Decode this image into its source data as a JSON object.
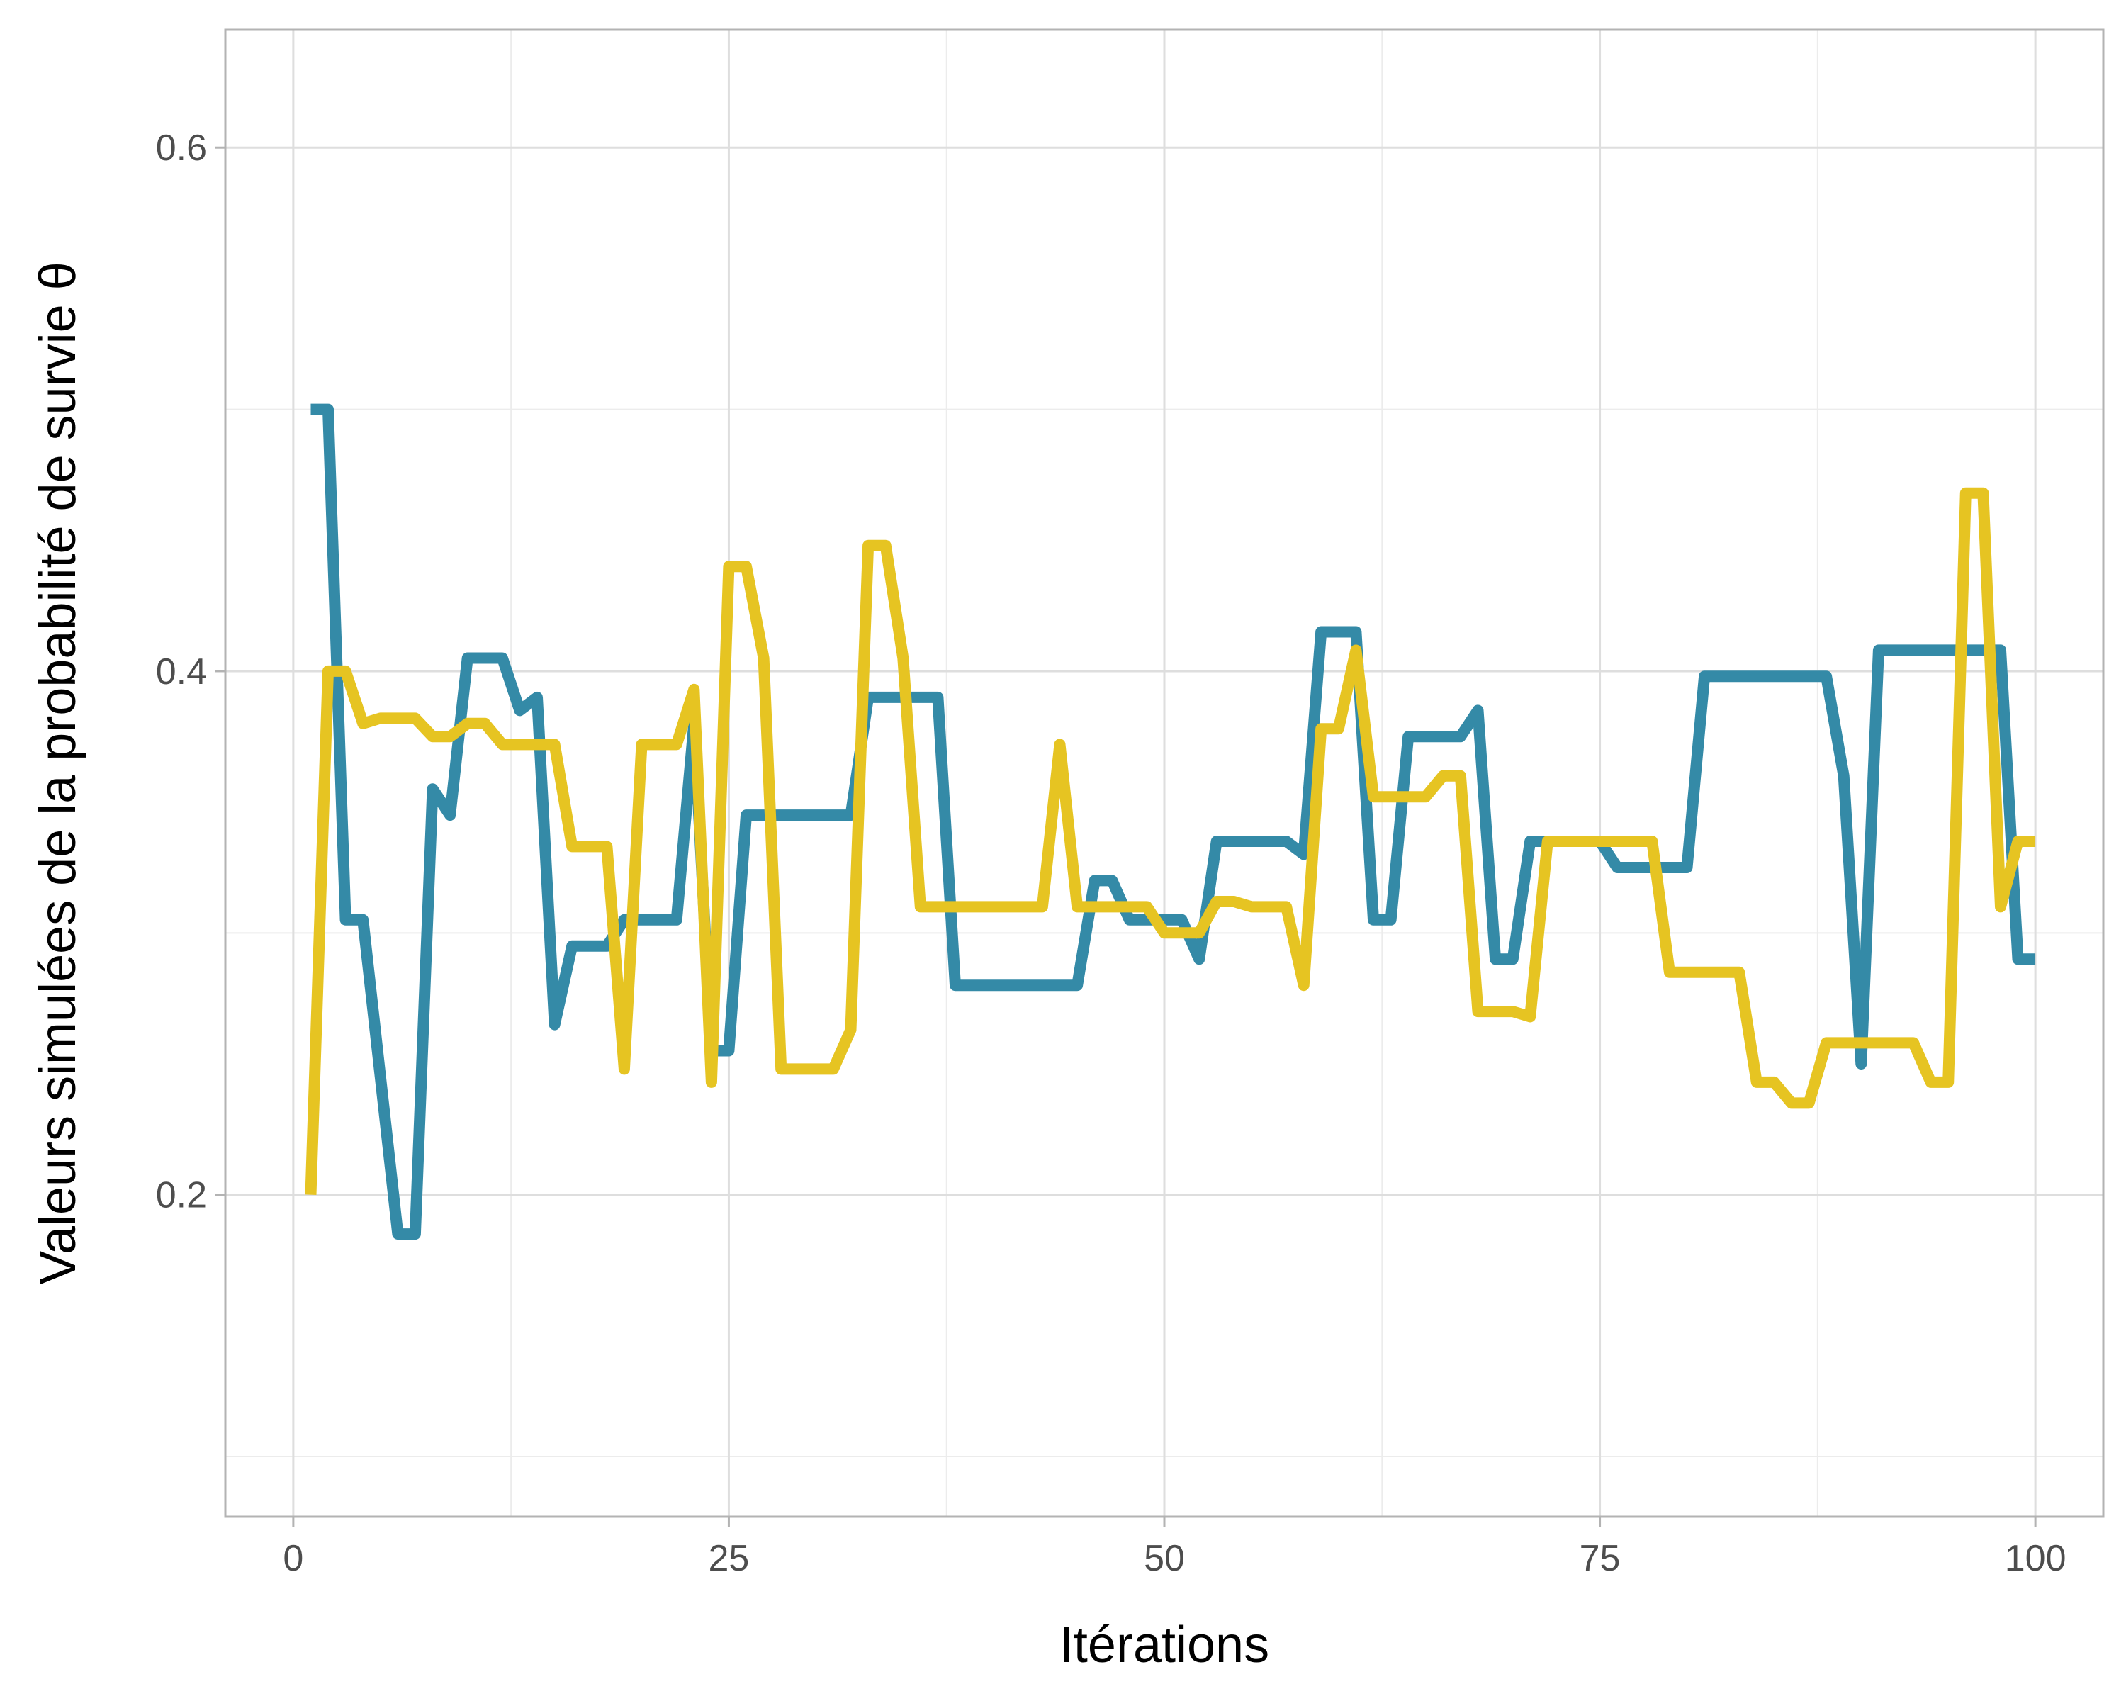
{
  "chart_data": {
    "type": "line",
    "xlabel": "Itérations",
    "ylabel": "Valeurs simulées de la probabilité de survie θ",
    "xlim": [
      -3.9,
      103.9
    ],
    "ylim": [
      0.077,
      0.645
    ],
    "x_ticks": [
      0,
      25,
      50,
      75,
      100
    ],
    "x_tick_labels": [
      "0",
      "25",
      "50",
      "75",
      "100"
    ],
    "y_ticks": [
      0.2,
      0.4,
      0.6
    ],
    "y_tick_labels": [
      "0.2",
      "0.4",
      "0.6"
    ],
    "grid": true,
    "legend": "none",
    "colors": {
      "background": "#ffffff",
      "panel_border": "#b3b3b3",
      "grid_major": "#dedede",
      "grid_minor": "#ececec",
      "series_1": "#348aa7",
      "series_2": "#e6c422"
    },
    "series": [
      {
        "color": "#348aa7",
        "x": [
          1,
          2,
          3,
          4,
          5,
          6,
          7,
          8,
          9,
          10,
          11,
          12,
          13,
          14,
          15,
          16,
          17,
          18,
          19,
          20,
          21,
          22,
          23,
          24,
          25,
          26,
          27,
          28,
          29,
          30,
          31,
          32,
          33,
          34,
          35,
          36,
          37,
          38,
          39,
          40,
          41,
          42,
          43,
          44,
          45,
          46,
          47,
          48,
          49,
          50,
          51,
          52,
          53,
          54,
          55,
          56,
          57,
          58,
          59,
          60,
          61,
          62,
          63,
          64,
          65,
          66,
          67,
          68,
          69,
          70,
          71,
          72,
          73,
          74,
          75,
          76,
          77,
          78,
          79,
          80,
          81,
          82,
          83,
          84,
          85,
          86,
          87,
          88,
          89,
          90,
          91,
          92,
          93,
          94,
          95,
          96,
          97,
          98,
          99,
          100
        ],
        "values": [
          0.5,
          0.5,
          0.305,
          0.305,
          0.245,
          0.185,
          0.185,
          0.355,
          0.345,
          0.405,
          0.405,
          0.405,
          0.385,
          0.39,
          0.265,
          0.295,
          0.295,
          0.295,
          0.305,
          0.305,
          0.305,
          0.305,
          0.38,
          0.255,
          0.255,
          0.345,
          0.345,
          0.345,
          0.345,
          0.345,
          0.345,
          0.345,
          0.39,
          0.39,
          0.39,
          0.39,
          0.39,
          0.28,
          0.28,
          0.28,
          0.28,
          0.28,
          0.28,
          0.28,
          0.28,
          0.32,
          0.32,
          0.305,
          0.305,
          0.305,
          0.305,
          0.29,
          0.335,
          0.335,
          0.335,
          0.335,
          0.335,
          0.33,
          0.415,
          0.415,
          0.415,
          0.305,
          0.305,
          0.375,
          0.375,
          0.375,
          0.375,
          0.385,
          0.29,
          0.29,
          0.335,
          0.335,
          0.335,
          0.335,
          0.335,
          0.325,
          0.325,
          0.325,
          0.325,
          0.325,
          0.398,
          0.398,
          0.398,
          0.398,
          0.398,
          0.398,
          0.398,
          0.398,
          0.36,
          0.25,
          0.408,
          0.408,
          0.408,
          0.408,
          0.408,
          0.408,
          0.408,
          0.408,
          0.29,
          0.29
        ]
      },
      {
        "color": "#e6c422",
        "x": [
          1,
          2,
          3,
          4,
          5,
          6,
          7,
          8,
          9,
          10,
          11,
          12,
          13,
          14,
          15,
          16,
          17,
          18,
          19,
          20,
          21,
          22,
          23,
          24,
          25,
          26,
          27,
          28,
          29,
          30,
          31,
          32,
          33,
          34,
          35,
          36,
          37,
          38,
          39,
          40,
          41,
          42,
          43,
          44,
          45,
          46,
          47,
          48,
          49,
          50,
          51,
          52,
          53,
          54,
          55,
          56,
          57,
          58,
          59,
          60,
          61,
          62,
          63,
          64,
          65,
          66,
          67,
          68,
          69,
          70,
          71,
          72,
          73,
          74,
          75,
          76,
          77,
          78,
          79,
          80,
          81,
          82,
          83,
          84,
          85,
          86,
          87,
          88,
          89,
          90,
          91,
          92,
          93,
          94,
          95,
          96,
          97,
          98,
          99,
          100
        ],
        "values": [
          0.2,
          0.4,
          0.4,
          0.38,
          0.382,
          0.382,
          0.382,
          0.375,
          0.375,
          0.38,
          0.38,
          0.372,
          0.372,
          0.372,
          0.372,
          0.333,
          0.333,
          0.333,
          0.248,
          0.372,
          0.372,
          0.372,
          0.393,
          0.243,
          0.44,
          0.44,
          0.405,
          0.248,
          0.248,
          0.248,
          0.248,
          0.263,
          0.448,
          0.448,
          0.405,
          0.31,
          0.31,
          0.31,
          0.31,
          0.31,
          0.31,
          0.31,
          0.31,
          0.372,
          0.31,
          0.31,
          0.31,
          0.31,
          0.31,
          0.3,
          0.3,
          0.3,
          0.312,
          0.312,
          0.31,
          0.31,
          0.31,
          0.28,
          0.378,
          0.378,
          0.408,
          0.352,
          0.352,
          0.352,
          0.352,
          0.36,
          0.36,
          0.27,
          0.27,
          0.27,
          0.268,
          0.335,
          0.335,
          0.335,
          0.335,
          0.335,
          0.335,
          0.335,
          0.285,
          0.285,
          0.285,
          0.285,
          0.285,
          0.243,
          0.243,
          0.235,
          0.235,
          0.258,
          0.258,
          0.258,
          0.258,
          0.258,
          0.258,
          0.243,
          0.243,
          0.468,
          0.468,
          0.31,
          0.335,
          0.335
        ]
      }
    ]
  }
}
